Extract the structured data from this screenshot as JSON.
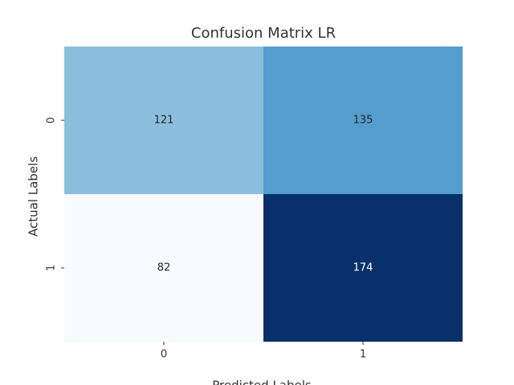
{
  "chart_data": {
    "type": "heatmap",
    "title": "Confusion Matrix LR",
    "x_label": "Predicted Labels",
    "y_label": "Actual Labels",
    "x_categories": [
      "0",
      "1"
    ],
    "y_categories": [
      "0",
      "1"
    ],
    "values": [
      [
        121,
        135
      ],
      [
        82,
        174
      ]
    ],
    "cell_colors": [
      [
        "#8bbfdd",
        "#539ecd"
      ],
      [
        "#f7fbff",
        "#08306b"
      ]
    ]
  }
}
